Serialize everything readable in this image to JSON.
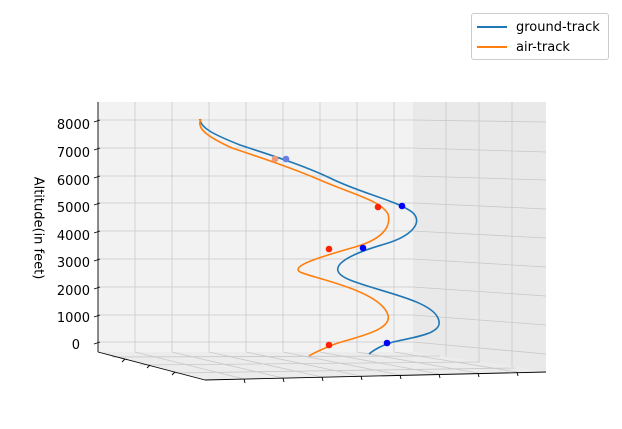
{
  "chart_data": {
    "type": "line3d",
    "zlabel": "Altitude(in feet)",
    "zticks": [
      0,
      1000,
      2000,
      3000,
      4000,
      5000,
      6000,
      7000,
      8000
    ],
    "grid": true,
    "legend_position": "top-right",
    "series": [
      {
        "name": "ground-track",
        "color": "#1f77b4",
        "marker_color": "#0000ff",
        "waypoint_altitudes": [
          6800,
          5100,
          3600,
          0
        ]
      },
      {
        "name": "air-track",
        "color": "#ff7f0e",
        "marker_color": "#ff2200",
        "waypoint_altitudes": [
          6800,
          5100,
          3600,
          0
        ]
      }
    ]
  }
}
